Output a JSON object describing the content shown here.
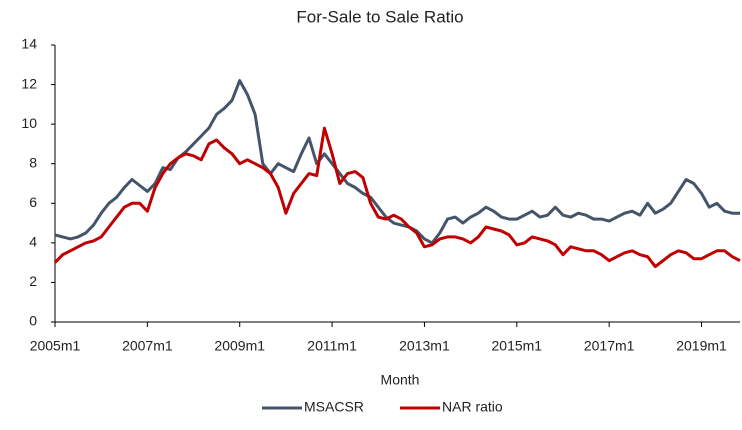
{
  "chart_data": {
    "type": "line",
    "title": "For-Sale to Sale Ratio",
    "x_label": "Month",
    "categories": [
      "2005m1",
      null,
      null,
      null,
      null,
      null,
      null,
      null,
      null,
      null,
      null,
      null,
      "2007m1",
      null,
      null,
      null,
      null,
      null,
      null,
      null,
      null,
      null,
      null,
      null,
      "2009m1",
      null,
      null,
      null,
      null,
      null,
      null,
      null,
      null,
      null,
      null,
      null,
      "2011m1",
      null,
      null,
      null,
      null,
      null,
      null,
      null,
      null,
      null,
      null,
      null,
      "2013m1",
      null,
      null,
      null,
      null,
      null,
      null,
      null,
      null,
      null,
      null,
      null,
      "2015m1",
      null,
      null,
      null,
      null,
      null,
      null,
      null,
      null,
      null,
      null,
      null,
      "2017m1",
      null,
      null,
      null,
      null,
      null,
      null,
      null,
      null,
      null,
      null,
      null,
      "2019m1",
      null,
      null,
      null,
      null,
      null
    ],
    "series": [
      {
        "name": "MSACSR",
        "color": "#44546a",
        "values": [
          4.4,
          4.3,
          4.2,
          4.3,
          4.5,
          4.9,
          5.5,
          6.0,
          6.3,
          6.8,
          7.2,
          6.9,
          6.6,
          7.0,
          7.8,
          7.7,
          8.3,
          8.6,
          9.0,
          9.4,
          9.8,
          10.5,
          10.8,
          11.2,
          12.2,
          11.5,
          10.5,
          8.0,
          7.5,
          8.0,
          7.8,
          7.6,
          8.5,
          9.3,
          8.0,
          8.5,
          8.0,
          7.5,
          7.0,
          6.8,
          6.5,
          6.3,
          5.8,
          5.3,
          5.0,
          4.9,
          4.8,
          4.6,
          4.2,
          4.0,
          4.5,
          5.2,
          5.3,
          5.0,
          5.3,
          5.5,
          5.8,
          5.6,
          5.3,
          5.2,
          5.2,
          5.4,
          5.6,
          5.3,
          5.4,
          5.8,
          5.4,
          5.3,
          5.5,
          5.4,
          5.2,
          5.2,
          5.1,
          5.3,
          5.5,
          5.6,
          5.4,
          6.0,
          5.5,
          5.7,
          6.0,
          6.6,
          7.2,
          7.0,
          6.5,
          5.8,
          6.0,
          5.6,
          5.5,
          5.5
        ]
      },
      {
        "name": "NAR ratio",
        "color": "#c00000",
        "values": [
          3.0,
          3.4,
          3.6,
          3.8,
          4.0,
          4.1,
          4.3,
          4.8,
          5.3,
          5.8,
          6.0,
          6.0,
          5.6,
          6.8,
          7.5,
          8.0,
          8.3,
          8.5,
          8.4,
          8.2,
          9.0,
          9.2,
          8.8,
          8.5,
          8.0,
          8.2,
          8.0,
          7.8,
          7.5,
          6.8,
          5.5,
          6.5,
          7.0,
          7.5,
          7.4,
          9.8,
          8.5,
          7.0,
          7.5,
          7.6,
          7.3,
          6.0,
          5.3,
          5.2,
          5.4,
          5.2,
          4.8,
          4.5,
          3.8,
          3.9,
          4.2,
          4.3,
          4.3,
          4.2,
          4.0,
          4.3,
          4.8,
          4.7,
          4.6,
          4.4,
          3.9,
          4.0,
          4.3,
          4.2,
          4.1,
          3.9,
          3.4,
          3.8,
          3.7,
          3.6,
          3.6,
          3.4,
          3.1,
          3.3,
          3.5,
          3.6,
          3.4,
          3.3,
          2.8,
          3.1,
          3.4,
          3.6,
          3.5,
          3.2,
          3.2,
          3.4,
          3.6,
          3.6,
          3.3,
          3.1
        ]
      }
    ],
    "ylim": [
      0,
      14
    ],
    "yticks": [
      0,
      2,
      4,
      6,
      8,
      10,
      12,
      14
    ],
    "grid": false,
    "legend": "bottom"
  }
}
